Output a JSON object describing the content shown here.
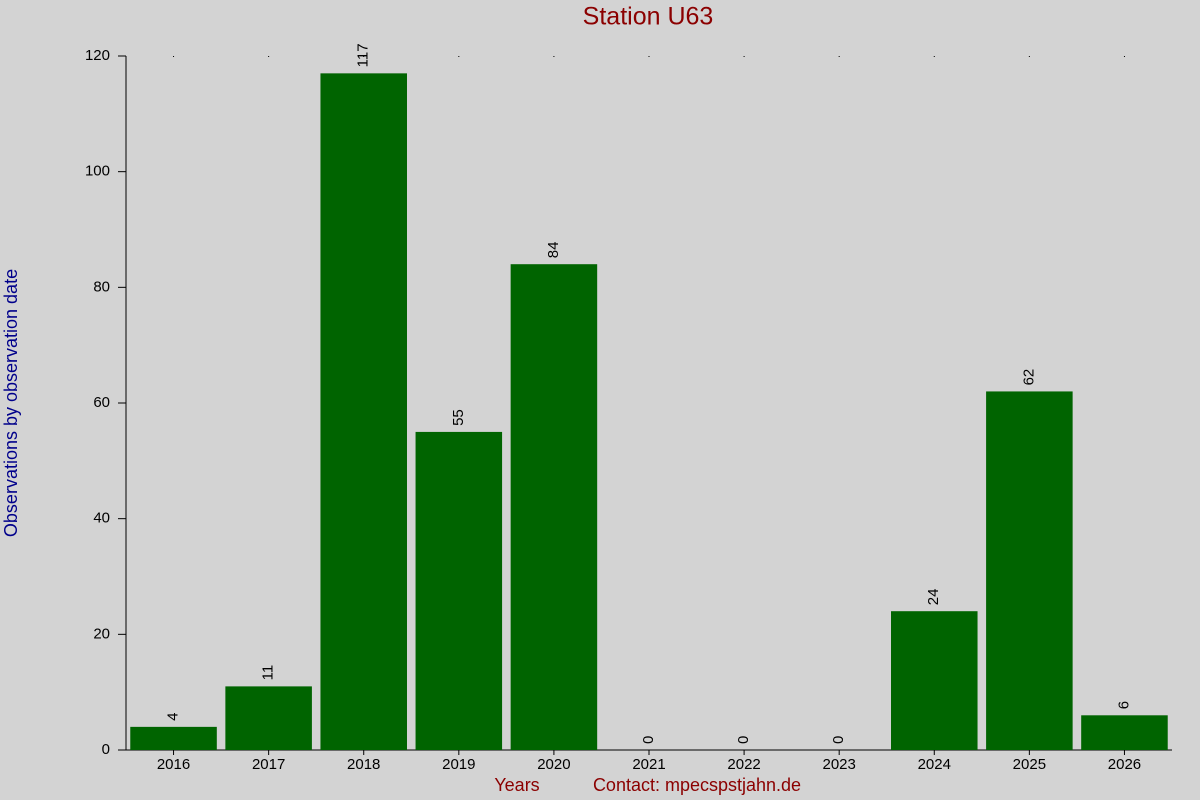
{
  "chart_data": {
    "type": "bar",
    "title": "Station U63",
    "xlabel": "Years",
    "annotation": "Contact: mpecspstjahn.de",
    "ylabel": "Observations by observation date",
    "categories": [
      "2016",
      "2017",
      "2018",
      "2019",
      "2020",
      "2021",
      "2022",
      "2023",
      "2024",
      "2025",
      "2026"
    ],
    "values": [
      4,
      11,
      117,
      55,
      84,
      0,
      0,
      0,
      24,
      62,
      6
    ],
    "color": "#006400",
    "ylim": [
      0,
      120
    ],
    "yticks": [
      0,
      20,
      40,
      60,
      80,
      100,
      120
    ]
  }
}
